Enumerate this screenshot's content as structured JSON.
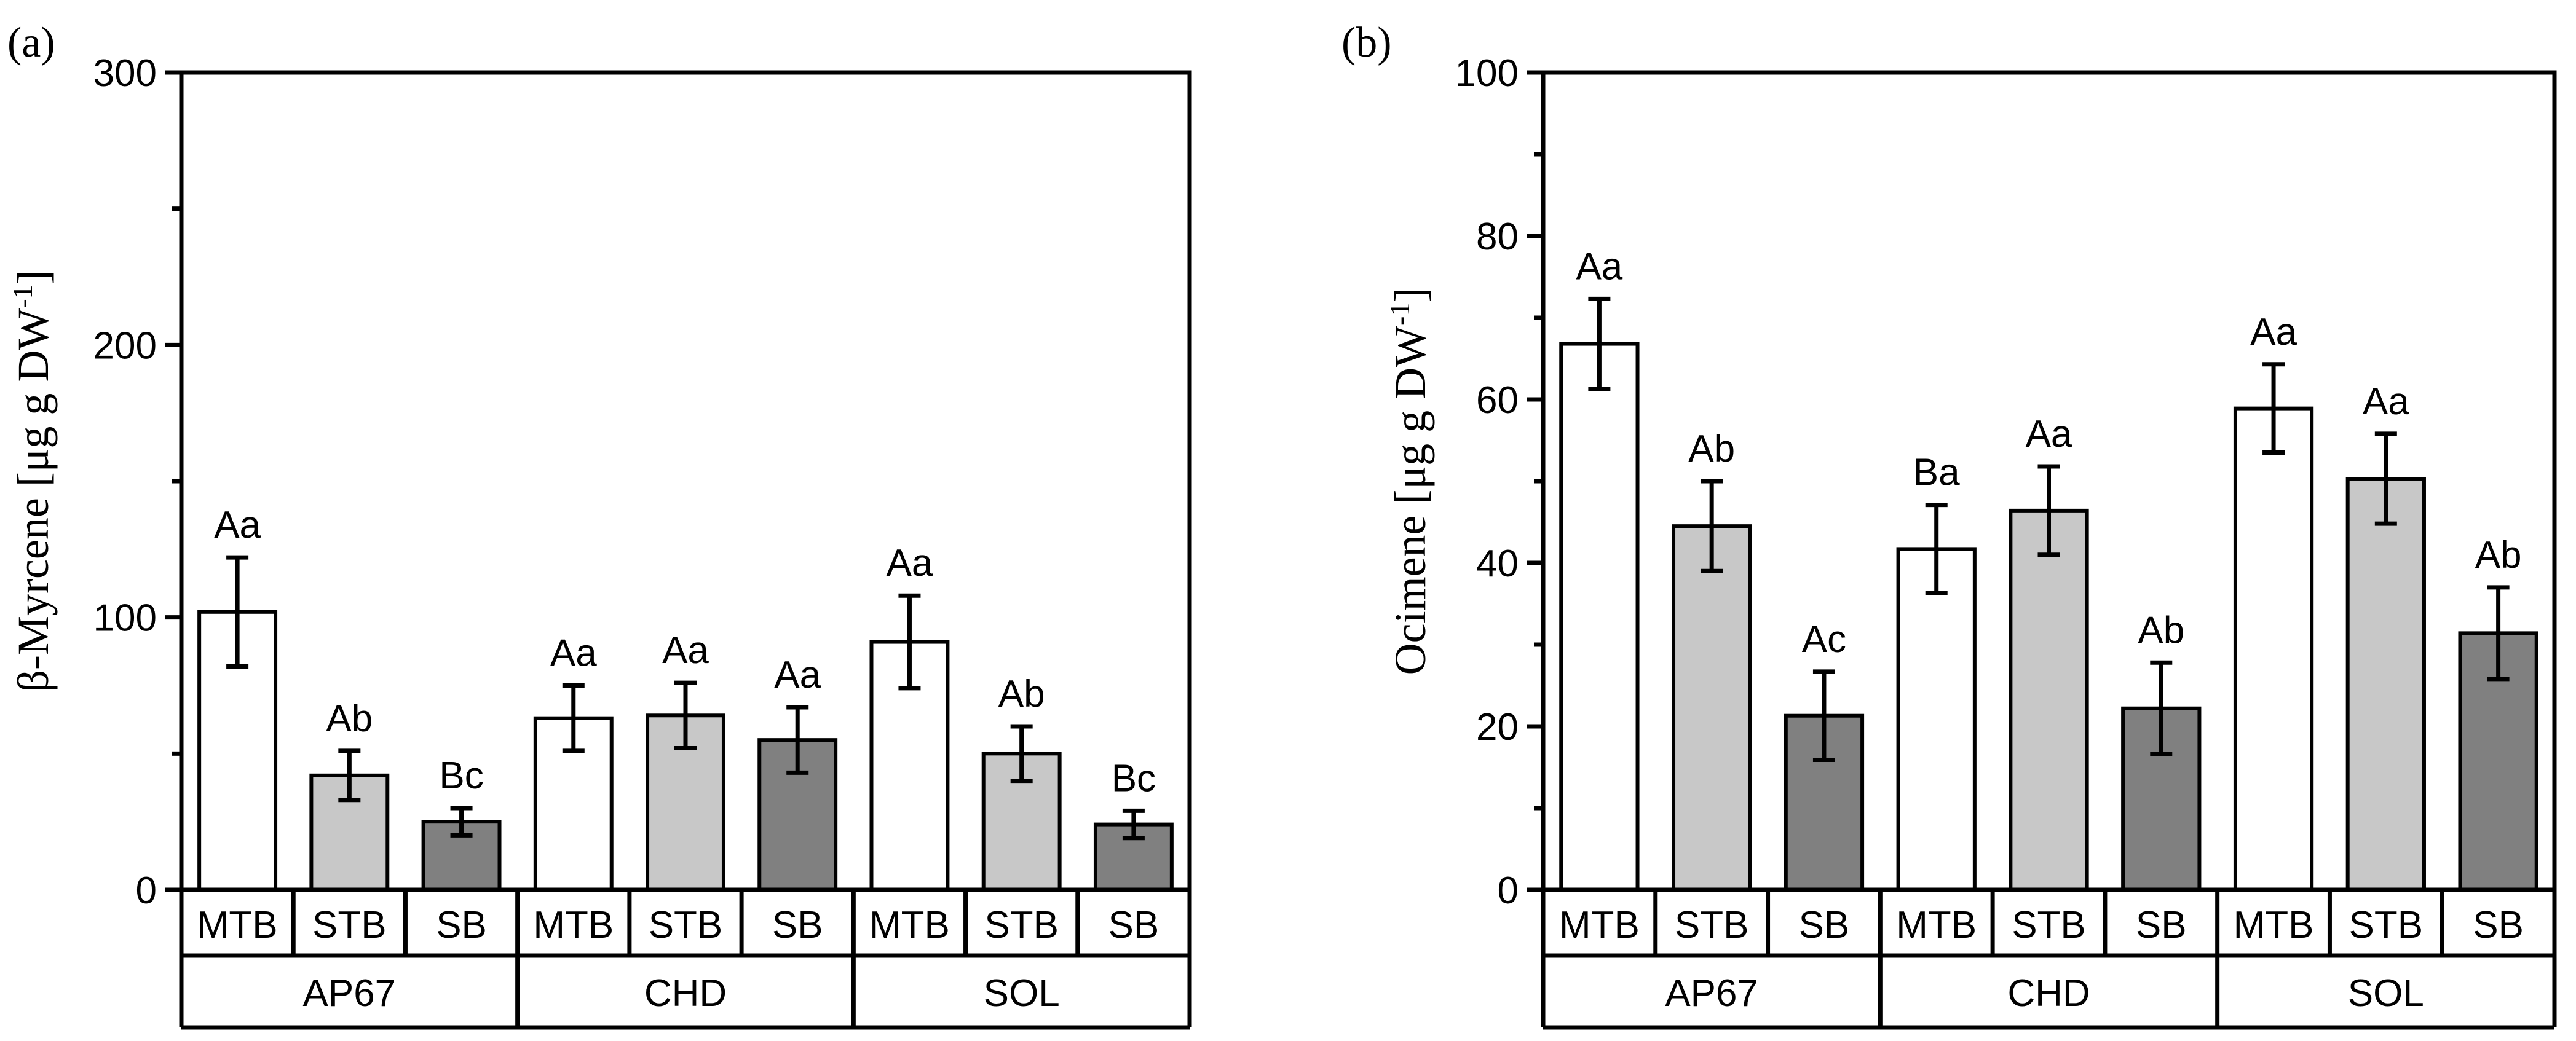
{
  "chart_data": [
    {
      "type": "bar",
      "panel_label": "(a)",
      "ylabel": "β-Myrcene [μg g DW",
      "ylabel_sup": "-1",
      "ylabel_close": "]",
      "ylim": [
        0,
        300
      ],
      "yticks": [
        "0",
        "100",
        "200",
        "300"
      ],
      "grid": false,
      "groups": [
        "AP67",
        "CHD",
        "SOL"
      ],
      "categories": [
        "MTB",
        "STB",
        "SB",
        "MTB",
        "STB",
        "SB",
        "MTB",
        "STB",
        "SB"
      ],
      "values": [
        102,
        42,
        25,
        63,
        64,
        55,
        91,
        50,
        24
      ],
      "errors": [
        20,
        9,
        5,
        12,
        12,
        12,
        17,
        10,
        5
      ],
      "letters": [
        "Aa",
        "Ab",
        "Bc",
        "Aa",
        "Aa",
        "Aa",
        "Aa",
        "Ab",
        "Bc"
      ]
    },
    {
      "type": "bar",
      "panel_label": "(b)",
      "ylabel": "Ocimene [μg g DW",
      "ylabel_sup": "-1",
      "ylabel_close": "]",
      "ylim": [
        0,
        100
      ],
      "yticks": [
        "0",
        "20",
        "40",
        "60",
        "80",
        "100"
      ],
      "grid": false,
      "groups": [
        "AP67",
        "CHD",
        "SOL"
      ],
      "categories": [
        "MTB",
        "STB",
        "SB",
        "MTB",
        "STB",
        "SB",
        "MTB",
        "STB",
        "SB"
      ],
      "values": [
        66.8,
        44.5,
        21.3,
        41.7,
        46.4,
        22.2,
        58.9,
        50.3,
        31.4
      ],
      "errors": [
        5.5,
        5.5,
        5.4,
        5.4,
        5.4,
        5.6,
        5.4,
        5.5,
        5.6
      ],
      "letters": [
        "Aa",
        "Ab",
        "Ac",
        "Ba",
        "Aa",
        "Ab",
        "Aa",
        "Aa",
        "Ab"
      ]
    }
  ],
  "colors": {
    "MTB": "#ffffff",
    "STB": "#c8c8c8",
    "SB": "#808080",
    "outline": "#000000"
  }
}
